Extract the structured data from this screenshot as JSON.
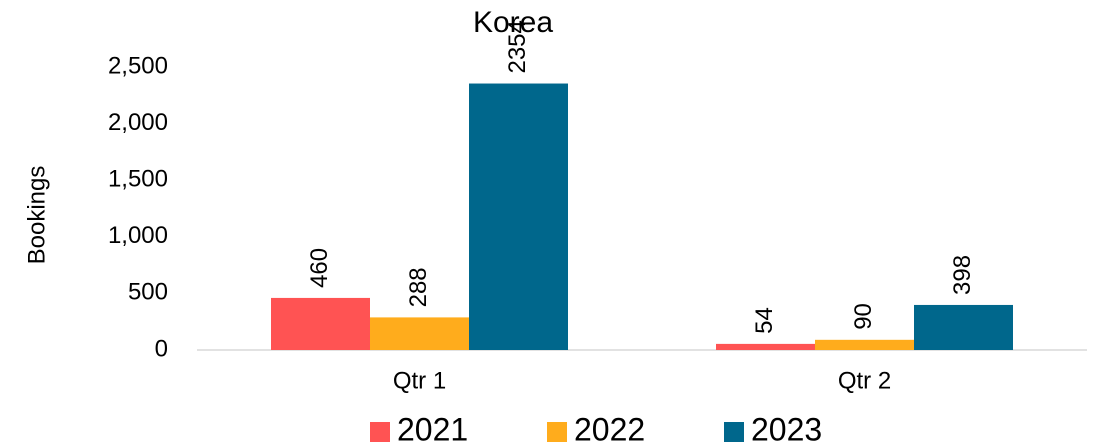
{
  "chart_data": {
    "type": "bar",
    "title": "Korea",
    "y_label": "Bookings",
    "categories": [
      "Qtr 1",
      "Qtr 2"
    ],
    "series": [
      {
        "name": "2021",
        "color": "#ff5353",
        "values": [
          460,
          54
        ]
      },
      {
        "name": "2022",
        "color": "#ffac1c",
        "values": [
          288,
          90
        ]
      },
      {
        "name": "2023",
        "color": "#00678c",
        "values": [
          2354,
          398
        ]
      }
    ],
    "ylim": [
      0,
      2500
    ],
    "yticks": [
      0,
      500,
      {
        "value": 1000,
        "label": "1,000"
      },
      {
        "value": 1500,
        "label": "1,500"
      },
      {
        "value": 2000,
        "label": "2,000"
      },
      {
        "value": 2500,
        "label": "2,500"
      }
    ],
    "grid": false,
    "legend": "bottom"
  }
}
